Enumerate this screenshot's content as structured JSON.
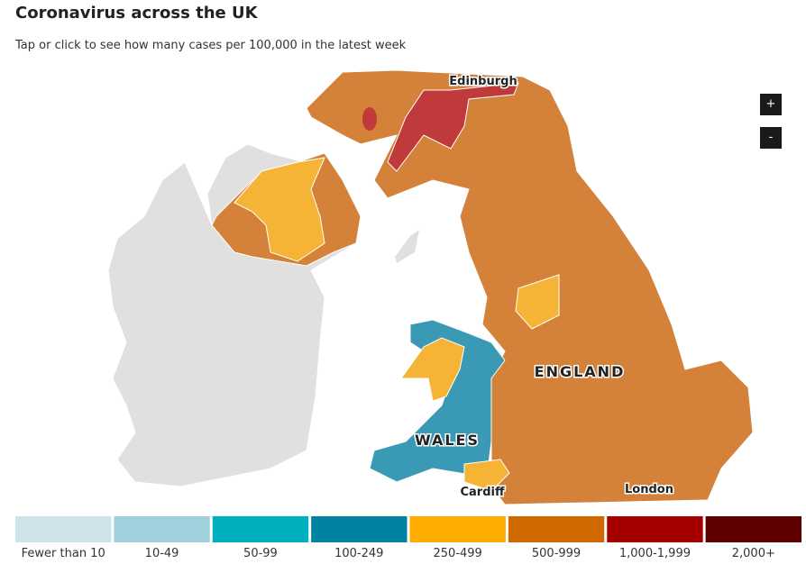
{
  "header": {
    "title": "Coronavirus across the UK",
    "subtitle": "Tap or click to see how many cases per 100,000 in the latest week"
  },
  "map": {
    "labels": [
      "Edinburgh",
      "ENGLAND",
      "WALES",
      "Cardiff",
      "London"
    ],
    "zoom_in": "+",
    "zoom_out": "-"
  },
  "legend": [
    {
      "label": "Fewer than 10",
      "color": "#cfe4e8"
    },
    {
      "label": "10-49",
      "color": "#9fd0dc"
    },
    {
      "label": "50-99",
      "color": "#00b0be"
    },
    {
      "label": "100-249",
      "color": "#0083a3"
    },
    {
      "label": "250-499",
      "color": "#ffab00"
    },
    {
      "label": "500-999",
      "color": "#d06a00"
    },
    {
      "label": "1,000-1,999",
      "color": "#a50000"
    },
    {
      "label": "2,000+",
      "color": "#5e0000"
    }
  ]
}
